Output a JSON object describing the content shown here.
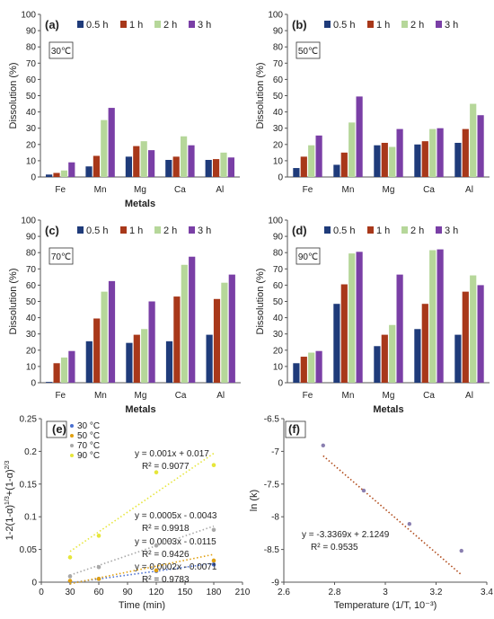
{
  "colors": {
    "0.5 h": "#1f3b7a",
    "1 h": "#a8381a",
    "2 h": "#b6d79a",
    "3 h": "#7a3fa6",
    "30": "#4a6fd1",
    "50": "#e0a010",
    "70": "#a8a8a8",
    "90": "#e6e63a",
    "f": "#b04a1a"
  },
  "chart_data": [
    {
      "id": "a",
      "type": "bar",
      "panel_label": "(a)",
      "temp_label": "30℃",
      "categories": [
        "Fe",
        "Mn",
        "Mg",
        "Ca",
        "Al"
      ],
      "xlabel": "Metals",
      "ylabel": "Dissolution (%)",
      "ylim": [
        0,
        100
      ],
      "yticks": [
        "0",
        "10",
        "20",
        "30",
        "40",
        "50",
        "60",
        "70",
        "80",
        "90",
        "100"
      ],
      "series": [
        {
          "name": "0.5 h",
          "values": [
            1.5,
            6.5,
            12.5,
            10.5,
            10.5
          ]
        },
        {
          "name": "1 h",
          "values": [
            2.5,
            13,
            19,
            12.5,
            11
          ]
        },
        {
          "name": "2 h",
          "values": [
            4,
            35,
            22,
            25,
            15
          ]
        },
        {
          "name": "3 h",
          "values": [
            9,
            42.5,
            16.5,
            19.5,
            12
          ]
        }
      ]
    },
    {
      "id": "b",
      "type": "bar",
      "panel_label": "(b)",
      "temp_label": "50℃",
      "categories": [
        "Fe",
        "Mn",
        "Mg",
        "Ca",
        "Al"
      ],
      "xlabel": "",
      "ylabel": "Dissolution (%)",
      "ylim": [
        0,
        100
      ],
      "yticks": [
        "0",
        "10",
        "20",
        "30",
        "40",
        "50",
        "60",
        "70",
        "80",
        "90",
        "100"
      ],
      "series": [
        {
          "name": "0.5 h",
          "values": [
            5.5,
            7.5,
            19.5,
            20,
            21
          ]
        },
        {
          "name": "1 h",
          "values": [
            12.5,
            15,
            21,
            22,
            29.5
          ]
        },
        {
          "name": "2 h",
          "values": [
            19.5,
            33.5,
            18.5,
            29.5,
            45
          ]
        },
        {
          "name": "3 h",
          "values": [
            25.5,
            49.5,
            29.5,
            30,
            38
          ]
        }
      ]
    },
    {
      "id": "c",
      "type": "bar",
      "panel_label": "(c)",
      "temp_label": "70℃",
      "categories": [
        "Fe",
        "Mn",
        "Mg",
        "Ca",
        "Al"
      ],
      "xlabel": "Metals",
      "ylabel": "Dissolution (%)",
      "ylim": [
        0,
        100
      ],
      "yticks": [
        "0",
        "10",
        "20",
        "30",
        "40",
        "50",
        "60",
        "70",
        "80",
        "90",
        "100"
      ],
      "series": [
        {
          "name": "0.5 h",
          "values": [
            0.5,
            25.5,
            24.5,
            25.5,
            29.5
          ]
        },
        {
          "name": "1 h",
          "values": [
            12,
            39.5,
            29.5,
            53,
            51.5
          ]
        },
        {
          "name": "2 h",
          "values": [
            15.5,
            56,
            33,
            72.5,
            61.5
          ]
        },
        {
          "name": "3 h",
          "values": [
            19.5,
            62.5,
            50,
            77.5,
            66.5
          ]
        }
      ]
    },
    {
      "id": "d",
      "type": "bar",
      "panel_label": "(d)",
      "temp_label": "90℃",
      "categories": [
        "Fe",
        "Mn",
        "Mg",
        "Ca",
        "Al"
      ],
      "xlabel": "Metals",
      "ylabel": "Dissolution (%)",
      "ylim": [
        0,
        100
      ],
      "yticks": [
        "0",
        "10",
        "20",
        "30",
        "40",
        "50",
        "60",
        "70",
        "80",
        "90",
        "100"
      ],
      "series": [
        {
          "name": "0.5 h",
          "values": [
            12,
            48.5,
            22.5,
            33,
            29.5
          ]
        },
        {
          "name": "1 h",
          "values": [
            16,
            60.5,
            29.5,
            48.5,
            56
          ]
        },
        {
          "name": "2 h",
          "values": [
            18.5,
            79.5,
            35.5,
            81.5,
            66
          ]
        },
        {
          "name": "3 h",
          "values": [
            19.5,
            80.5,
            66.5,
            82,
            60
          ]
        }
      ]
    },
    {
      "id": "e",
      "type": "scatter",
      "panel_label": "(e)",
      "xlabel": "Time (min)",
      "ylabel": "1-2(1-α)^{1/3}+(1-α)^{2/3}",
      "ylabel_parts": [
        "1-2(1-α)",
        "1/3",
        "+(1-α)",
        "2/3"
      ],
      "xlim": [
        0,
        210
      ],
      "ylim": [
        0,
        0.25
      ],
      "xticks": [
        "0",
        "30",
        "60",
        "90",
        "120",
        "150",
        "180",
        "210"
      ],
      "yticks": [
        "0",
        "0.05",
        "0.1",
        "0.15",
        "0.2",
        "0.25"
      ],
      "series": [
        {
          "name": "30 °C",
          "key": "30",
          "x": [
            30,
            60,
            120,
            180
          ],
          "y": [
            0.001,
            0.005,
            0.017,
            0.027
          ],
          "slope": 0.0002,
          "intercept": -0.0071,
          "equation": "y = 0.0002x - 0.0071",
          "r2": "R² = 0.9783"
        },
        {
          "name": "50 °C",
          "key": "50",
          "x": [
            30,
            60,
            120,
            180
          ],
          "y": [
            0.002,
            0.005,
            0.018,
            0.033
          ],
          "slope": 0.0003,
          "intercept": -0.0115,
          "equation": "y = 0.0003x - 0.0115",
          "r2": "R² = 0.9426"
        },
        {
          "name": "70 °C",
          "key": "70",
          "x": [
            30,
            60,
            120,
            180
          ],
          "y": [
            0.009,
            0.023,
            0.056,
            0.08
          ],
          "slope": 0.0005,
          "intercept": -0.0043,
          "equation": "y = 0.0005x - 0.0043",
          "r2": "R² = 0.9918"
        },
        {
          "name": "90 °C",
          "key": "90",
          "x": [
            30,
            60,
            120,
            180
          ],
          "y": [
            0.038,
            0.071,
            0.168,
            0.179
          ],
          "slope": 0.001,
          "intercept": 0.017,
          "equation": "y = 0.001x + 0.017",
          "r2": "R² = 0.9077"
        }
      ]
    },
    {
      "id": "f",
      "type": "scatter",
      "panel_label": "(f)",
      "xlabel": "Temperature (1/T, 10⁻³)",
      "ylabel": "ln (k)",
      "xlim": [
        2.6,
        3.4
      ],
      "ylim": [
        -9,
        -6.5
      ],
      "xticks": [
        "2.6",
        "2.8",
        "3",
        "3.2",
        "3.4"
      ],
      "yticks": [
        "-9",
        "-8.5",
        "-8",
        "-7.5",
        "-7",
        "-6.5"
      ],
      "x": [
        2.755,
        2.915,
        3.095,
        3.3
      ],
      "y": [
        -6.91,
        -7.6,
        -8.11,
        -8.52
      ],
      "slope": -3.3369,
      "intercept": 2.1249,
      "equation": "y = -3.3369x + 2.1249",
      "r2": "R² = 0.9535"
    }
  ]
}
